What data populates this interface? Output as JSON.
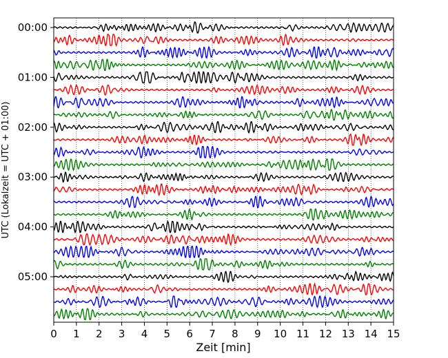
{
  "chart_data": {
    "type": "line",
    "title": "",
    "xlabel": "Zeit  [min]",
    "ylabel": "UTC (Lokalzeit = UTC + 01:00)",
    "xlim": [
      0,
      15
    ],
    "xticks": [
      0,
      1,
      2,
      3,
      4,
      5,
      6,
      7,
      8,
      9,
      10,
      11,
      12,
      13,
      14,
      15
    ],
    "yticks": [
      "00:00",
      "01:00",
      "02:00",
      "03:00",
      "04:00",
      "05:00"
    ],
    "grid": "vertical dotted",
    "series_colors": [
      "#000000",
      "#ff0000",
      "#0000ff",
      "#008000"
    ],
    "trace_count": 24,
    "traces_per_hour": 4,
    "minutes_per_trace": 15
  }
}
